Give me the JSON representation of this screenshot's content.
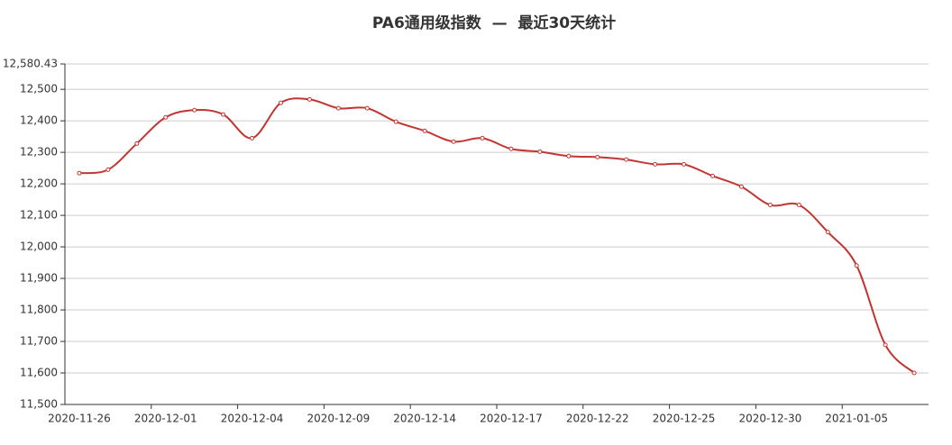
{
  "chart_data": {
    "type": "line",
    "title": "PA6通用级指数  —  最近30天统计",
    "categories": [
      "2020-11-26",
      null,
      null,
      "2020-12-01",
      null,
      null,
      "2020-12-04",
      null,
      null,
      "2020-12-09",
      null,
      null,
      "2020-12-14",
      null,
      null,
      "2020-12-17",
      null,
      null,
      "2020-12-22",
      null,
      null,
      "2020-12-25",
      null,
      null,
      "2020-12-30",
      null,
      null,
      "2021-01-05",
      null,
      null
    ],
    "series": [
      {
        "color": "#c23531",
        "values": [
          12234,
          12245,
          12328,
          12411,
          12434,
          12420,
          12345,
          12457,
          12468,
          12440,
          12440,
          12397,
          12368,
          12334,
          12345,
          12311,
          12302,
          12288,
          12285,
          12277,
          12262,
          12262,
          12225,
          12191,
          12133,
          12133,
          12047,
          11941,
          11689,
          11600
        ]
      }
    ],
    "ylim": [
      11500,
      12580.43
    ],
    "yticks": [
      {
        "value": 11500,
        "label": "11,500"
      },
      {
        "value": 11600,
        "label": "11,600"
      },
      {
        "value": 11700,
        "label": "11,700"
      },
      {
        "value": 11800,
        "label": "11,800"
      },
      {
        "value": 11900,
        "label": "11,900"
      },
      {
        "value": 12000,
        "label": "12,000"
      },
      {
        "value": 12100,
        "label": "12,100"
      },
      {
        "value": 12200,
        "label": "12,200"
      },
      {
        "value": 12300,
        "label": "12,300"
      },
      {
        "value": 12400,
        "label": "12,400"
      },
      {
        "value": 12500,
        "label": "12,500"
      },
      {
        "value": 12580.43,
        "label": "12,580.43"
      }
    ],
    "grid": true,
    "smooth": true
  }
}
